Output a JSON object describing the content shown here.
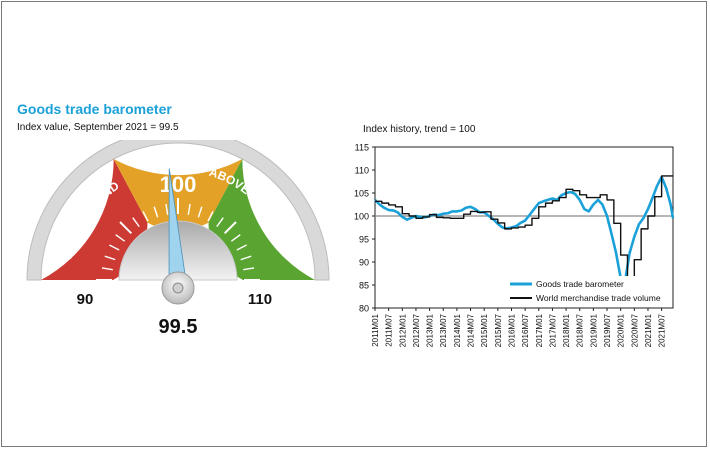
{
  "barometer": {
    "title": "Goods trade barometer",
    "subtitle": "Index value, September 2021 = 99.5",
    "center_label": "100",
    "left_label": "90",
    "right_label": "110",
    "value_label": "99.5",
    "value": 99.5,
    "range": [
      90,
      110
    ],
    "segments": [
      {
        "label": "BELOW TREND",
        "color": "#cc3a33"
      },
      {
        "label": "",
        "color": "#e3a227"
      },
      {
        "label": "ABOVE TREND",
        "color": "#5aa532"
      }
    ]
  },
  "chart_data": {
    "type": "line",
    "title": "Index history, trend = 100",
    "ylim": [
      80,
      115
    ],
    "yticks": [
      80,
      85,
      90,
      95,
      100,
      105,
      110,
      115
    ],
    "xlim": [
      2011.0,
      2021.917
    ],
    "trend": 100,
    "xticks": [
      "2011M01",
      "2011M07",
      "2012M01",
      "2012M07",
      "2013M01",
      "2013M07",
      "2014M01",
      "2014M07",
      "2015M01",
      "2015M07",
      "2016M01",
      "2016M07",
      "2017M01",
      "2017M07",
      "2018M01",
      "2018M07",
      "2019M01",
      "2019M07",
      "2020M01",
      "2020M07",
      "2021M01",
      "2021M07"
    ],
    "series": [
      {
        "name": "Goods trade barometer",
        "color": "#1ba1d9",
        "step": false,
        "x": [
          2011.0,
          2011.17,
          2011.33,
          2011.5,
          2011.67,
          2011.83,
          2012.0,
          2012.17,
          2012.33,
          2012.5,
          2012.67,
          2012.83,
          2013.0,
          2013.17,
          2013.33,
          2013.5,
          2013.67,
          2013.83,
          2014.0,
          2014.17,
          2014.33,
          2014.5,
          2014.67,
          2014.83,
          2015.0,
          2015.17,
          2015.33,
          2015.5,
          2015.67,
          2015.83,
          2016.0,
          2016.17,
          2016.33,
          2016.5,
          2016.67,
          2016.83,
          2017.0,
          2017.17,
          2017.33,
          2017.5,
          2017.67,
          2017.83,
          2018.0,
          2018.17,
          2018.33,
          2018.5,
          2018.67,
          2018.83,
          2019.0,
          2019.17,
          2019.33,
          2019.5,
          2019.67,
          2019.83,
          2020.0,
          2020.17,
          2020.33,
          2020.5,
          2020.67,
          2020.83,
          2021.0,
          2021.17,
          2021.33,
          2021.5,
          2021.67,
          2021.83,
          2021.917
        ],
        "y": [
          103.5,
          102.5,
          101.8,
          101.3,
          101.2,
          100.8,
          99.8,
          99.2,
          99.6,
          100.0,
          99.8,
          99.7,
          100.0,
          100.3,
          100.2,
          100.5,
          100.6,
          101.0,
          101.0,
          101.2,
          101.8,
          102.0,
          101.5,
          100.8,
          100.8,
          100.0,
          99.3,
          98.3,
          97.5,
          97.3,
          97.5,
          97.8,
          98.5,
          99.0,
          100.3,
          101.5,
          102.8,
          103.2,
          103.5,
          103.8,
          103.5,
          104.5,
          105.0,
          105.2,
          104.8,
          103.5,
          101.5,
          101.0,
          102.5,
          103.5,
          102.5,
          100.0,
          96.0,
          92.0,
          86.5,
          86.2,
          92.0,
          95.5,
          98.2,
          99.5,
          101.5,
          104.0,
          106.5,
          108.5,
          106.0,
          102.5,
          99.5
        ]
      },
      {
        "name": "World merchandise trade volume",
        "color": "#111111",
        "step": true,
        "x": [
          2011.0,
          2011.25,
          2011.5,
          2011.75,
          2012.0,
          2012.25,
          2012.5,
          2012.75,
          2013.0,
          2013.25,
          2013.5,
          2013.75,
          2014.0,
          2014.25,
          2014.5,
          2014.75,
          2015.0,
          2015.25,
          2015.5,
          2015.75,
          2016.0,
          2016.25,
          2016.5,
          2016.75,
          2017.0,
          2017.25,
          2017.5,
          2017.75,
          2018.0,
          2018.25,
          2018.5,
          2018.75,
          2019.0,
          2019.25,
          2019.5,
          2019.75,
          2020.0,
          2020.25,
          2020.5,
          2020.75,
          2021.0,
          2021.25,
          2021.5,
          2021.75,
          2021.917
        ],
        "y": [
          103.2,
          102.8,
          102.4,
          102.0,
          100.5,
          100.0,
          99.5,
          99.8,
          100.3,
          99.7,
          99.6,
          99.5,
          99.5,
          100.4,
          101.0,
          100.8,
          100.9,
          99.3,
          98.5,
          97.2,
          97.4,
          97.6,
          98.0,
          99.5,
          102.0,
          102.8,
          103.3,
          104.0,
          105.8,
          105.5,
          104.6,
          104.0,
          104.0,
          104.6,
          103.5,
          98.4,
          91.5,
          86.6,
          90.5,
          97.2,
          100.0,
          104.2,
          108.7,
          108.7,
          108.7
        ]
      }
    ],
    "legend": [
      "Goods trade barometer",
      "World merchandise trade volume"
    ],
    "legend_position": "bottom-right"
  }
}
